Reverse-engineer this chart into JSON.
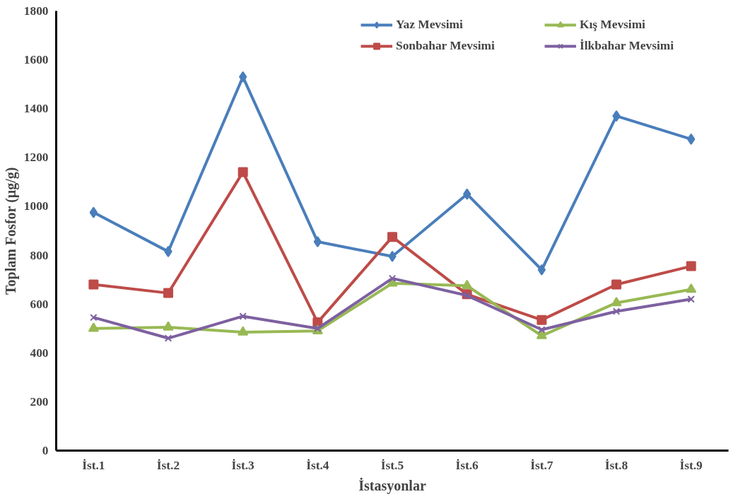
{
  "chart_data": {
    "type": "line",
    "xlabel": "İstasyonlar",
    "ylabel": "Toplam Fosfor (µg/g)",
    "categories": [
      "İst.1",
      "İst.2",
      "İst.3",
      "İst.4",
      "İst.5",
      "İst.6",
      "İst.7",
      "İst.8",
      "İst.9"
    ],
    "ylim": [
      0,
      1800
    ],
    "yticks": [
      0,
      200,
      400,
      600,
      800,
      1000,
      1200,
      1400,
      1600,
      1800
    ],
    "grid": false,
    "legend": "top right",
    "series": [
      {
        "name": "Yaz Mevsimi",
        "color": "#4a7ebb",
        "marker": "diamond",
        "values": [
          975,
          815,
          1530,
          855,
          795,
          1050,
          740,
          1370,
          1275
        ]
      },
      {
        "name": "Sonbahar Mevsimi",
        "color": "#be4b48",
        "marker": "square",
        "values": [
          680,
          645,
          1140,
          525,
          875,
          640,
          535,
          680,
          755
        ]
      },
      {
        "name": "Kış Mevsimi",
        "color": "#98b954",
        "marker": "triangle",
        "values": [
          500,
          505,
          485,
          490,
          685,
          675,
          470,
          605,
          660
        ]
      },
      {
        "name": "İlkbahar Mevsimi",
        "color": "#7d60a0",
        "marker": "cross",
        "values": [
          545,
          460,
          550,
          500,
          705,
          635,
          495,
          570,
          620
        ]
      }
    ]
  }
}
